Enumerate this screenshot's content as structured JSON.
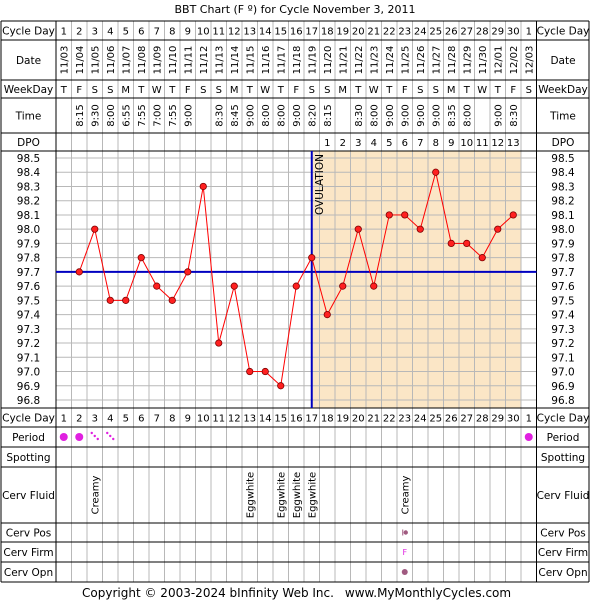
{
  "title": "BBT Chart (F º) for Cycle November 3, 2011",
  "footer": {
    "copyright": "Copyright © 2003-2024 bInfinity Web Inc.",
    "site": "www.MyMonthlyCycles.com"
  },
  "row_labels": {
    "cycle_day": "Cycle Day",
    "date": "Date",
    "weekday": "WeekDay",
    "time": "Time",
    "dpo": "DPO",
    "period": "Period",
    "spotting": "Spotting",
    "cerv_fluid": "Cerv Fluid",
    "cerv_pos": "Cerv Pos",
    "cerv_firm": "Cerv Firm",
    "cerv_opn": "Cerv Opn"
  },
  "cycle_days": [
    "1",
    "2",
    "3",
    "4",
    "5",
    "6",
    "7",
    "8",
    "9",
    "10",
    "11",
    "12",
    "13",
    "14",
    "15",
    "16",
    "17",
    "18",
    "19",
    "20",
    "21",
    "22",
    "23",
    "24",
    "25",
    "26",
    "27",
    "28",
    "29",
    "30",
    "1"
  ],
  "dates": [
    "11/03",
    "11/04",
    "11/05",
    "11/06",
    "11/07",
    "11/08",
    "11/09",
    "11/10",
    "11/11",
    "11/12",
    "11/13",
    "11/14",
    "11/15",
    "11/16",
    "11/17",
    "11/18",
    "11/19",
    "11/20",
    "11/21",
    "11/22",
    "11/23",
    "11/24",
    "11/25",
    "11/26",
    "11/27",
    "11/28",
    "11/29",
    "11/30",
    "12/01",
    "12/02",
    "12/03"
  ],
  "weekdays": [
    "T",
    "F",
    "S",
    "S",
    "M",
    "T",
    "W",
    "T",
    "F",
    "S",
    "S",
    "M",
    "T",
    "W",
    "T",
    "F",
    "S",
    "S",
    "M",
    "T",
    "W",
    "T",
    "F",
    "S",
    "S",
    "M",
    "T",
    "W",
    "T",
    "F",
    "S"
  ],
  "times": [
    "",
    "8:15",
    "9:30",
    "8:00",
    "6:55",
    "7:55",
    "7:00",
    "7:55",
    "9:00",
    "",
    "8:30",
    "8:45",
    "9:00",
    "8:00",
    "8:00",
    "9:00",
    "8:20",
    "8:15",
    "",
    "8:30",
    "8:00",
    "9:00",
    "9:00",
    "9:00",
    "9:00",
    "8:35",
    "8:00",
    "",
    "9:00",
    "8:30",
    ""
  ],
  "dpo": [
    "",
    "",
    "",
    "",
    "",
    "",
    "",
    "",
    "",
    "",
    "",
    "",
    "",
    "",
    "",
    "",
    "",
    "1",
    "2",
    "3",
    "4",
    "5",
    "6",
    "7",
    "8",
    "9",
    "10",
    "11",
    "12",
    "13",
    ""
  ],
  "cerv_fluid": [
    "",
    "",
    "Creamy",
    "",
    "",
    "",
    "",
    "",
    "",
    "",
    "",
    "",
    "Eggwhite",
    "",
    "Eggwhite",
    "Eggwhite",
    "Eggwhite",
    "",
    "",
    "",
    "",
    "",
    "Creamy",
    "",
    "",
    "",
    "",
    "",
    "",
    "",
    ""
  ],
  "period": [
    "heavy",
    "heavy",
    "spotty",
    "spotty",
    "",
    "",
    "",
    "",
    "",
    "",
    "",
    "",
    "",
    "",
    "",
    "",
    "",
    "",
    "",
    "",
    "",
    "",
    "",
    "",
    "",
    "",
    "",
    "",
    "",
    "",
    "heavy"
  ],
  "cerv_firm_marks": [
    "",
    "",
    "",
    "",
    "",
    "",
    "",
    "",
    "",
    "",
    "",
    "",
    "",
    "",
    "",
    "",
    "",
    "",
    "",
    "",
    "",
    "",
    "F",
    "",
    "",
    "",
    "",
    "",
    "",
    "",
    ""
  ],
  "ovulation_label": "OVULATION",
  "ovulation_day_index": 16,
  "coverline": 97.7,
  "colors": {
    "grid": "#b8b8b8",
    "line": "#ff0000",
    "point_fill": "#ff2020",
    "coverline": "#0000c0",
    "luteal_shade": "#fbe6c6",
    "period": "#e020e0",
    "cerv_pos": "#a05a80"
  },
  "chart_data": {
    "type": "line",
    "title": "BBT Chart (F º) for Cycle November 3, 2011",
    "xlabel": "Cycle Day",
    "ylabel": "",
    "x": [
      1,
      2,
      3,
      4,
      5,
      6,
      7,
      8,
      9,
      10,
      11,
      12,
      13,
      14,
      15,
      16,
      17,
      18,
      19,
      20,
      21,
      22,
      23,
      24,
      25,
      26,
      27,
      28,
      29,
      30
    ],
    "y_ticks": [
      96.8,
      96.9,
      97.0,
      97.1,
      97.2,
      97.3,
      97.4,
      97.5,
      97.6,
      97.7,
      97.8,
      97.9,
      98.0,
      98.1,
      98.2,
      98.3,
      98.4,
      98.5
    ],
    "ylim": [
      96.8,
      98.5
    ],
    "series": [
      {
        "values": [
          null,
          97.7,
          98.0,
          97.5,
          97.5,
          97.8,
          97.6,
          97.5,
          97.7,
          98.3,
          97.2,
          97.6,
          97.0,
          97.0,
          96.9,
          97.6,
          97.8,
          97.4,
          97.6,
          98.0,
          97.6,
          98.1,
          98.1,
          98.0,
          98.4,
          97.9,
          97.9,
          97.8,
          98.0,
          98.1
        ]
      }
    ],
    "grid": true
  }
}
